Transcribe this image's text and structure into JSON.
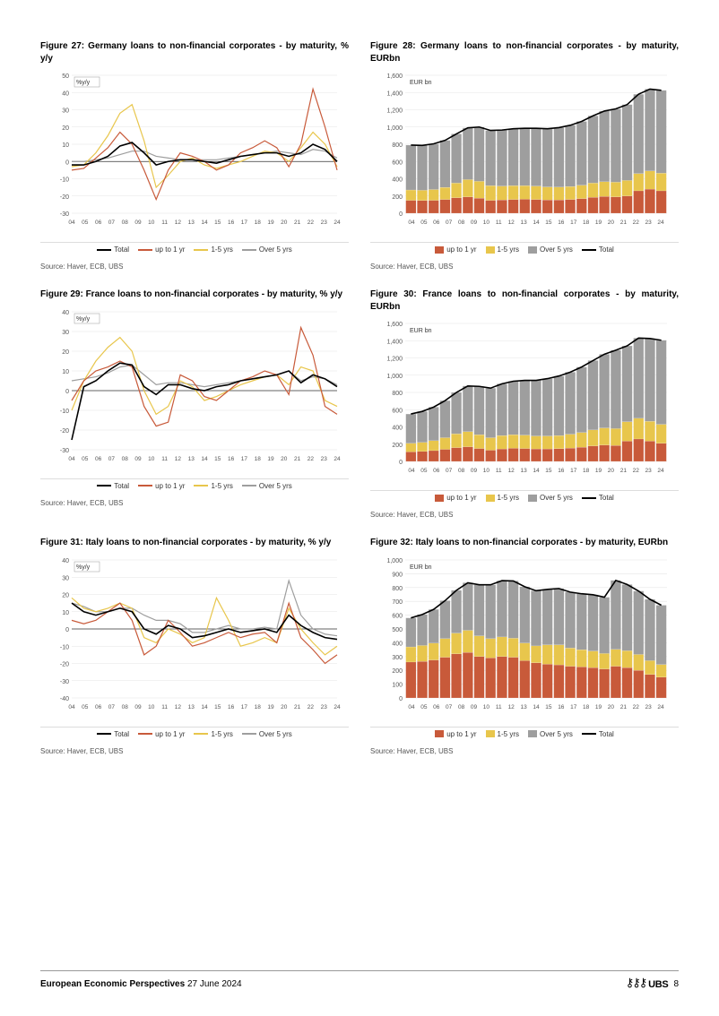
{
  "colors": {
    "total": "#000000",
    "upto1": "#c85a3a",
    "yrs15": "#e8c64c",
    "over5": "#9e9e9e",
    "grid": "#e5e5e5",
    "axis": "#888888",
    "bg": "#ffffff"
  },
  "x_labels": [
    "04",
    "05",
    "06",
    "07",
    "08",
    "09",
    "10",
    "11",
    "12",
    "13",
    "14",
    "15",
    "16",
    "17",
    "18",
    "19",
    "20",
    "21",
    "22",
    "23",
    "24"
  ],
  "figures": [
    {
      "id": "fig27",
      "title": "Figure 27: Germany loans to non-financial corporates - by maturity, % y/y",
      "type": "line",
      "ylabel": "%y/y",
      "ylim": [
        -30,
        50
      ],
      "ystep": 10,
      "legend_order": [
        "total",
        "upto1",
        "yrs15",
        "over5"
      ],
      "legend_labels": {
        "total": "Total",
        "upto1": "up to 1 yr",
        "yrs15": "1-5 yrs",
        "over5": "Over 5 yrs"
      },
      "series": {
        "total": [
          -2,
          -2,
          0,
          3,
          9,
          11,
          5,
          -2,
          0,
          1,
          1,
          0,
          -1,
          1,
          3,
          4,
          5,
          5,
          3,
          5,
          10,
          7,
          0
        ],
        "upto1": [
          -5,
          -4,
          2,
          8,
          17,
          10,
          -5,
          -22,
          -5,
          5,
          3,
          0,
          -5,
          -2,
          5,
          8,
          12,
          8,
          -3,
          10,
          42,
          20,
          -5
        ],
        "yrs15": [
          -3,
          -2,
          5,
          15,
          28,
          33,
          12,
          -15,
          -8,
          0,
          2,
          -2,
          -4,
          -2,
          0,
          3,
          6,
          5,
          0,
          8,
          17,
          10,
          -3
        ],
        "over5": [
          0,
          0,
          1,
          2,
          4,
          6,
          6,
          3,
          2,
          1,
          1,
          1,
          1,
          2,
          3,
          4,
          5,
          6,
          5,
          4,
          7,
          6,
          2
        ]
      }
    },
    {
      "id": "fig28",
      "title": "Figure 28: Germany loans to non-financial corporates - by maturity, EURbn",
      "type": "stacked",
      "ylabel": "EUR bn",
      "ylim": [
        0,
        1600
      ],
      "ystep": 200,
      "legend_order": [
        "upto1",
        "yrs15",
        "over5",
        "total"
      ],
      "legend_labels": {
        "upto1": "up to 1 yr",
        "yrs15": "1-5 yrs",
        "over5": "Over 5 yrs",
        "total": "Total"
      },
      "stacks": {
        "upto1": [
          150,
          148,
          150,
          160,
          180,
          190,
          175,
          150,
          155,
          160,
          162,
          160,
          155,
          155,
          160,
          170,
          185,
          195,
          190,
          200,
          260,
          280,
          260
        ],
        "yrs15": [
          120,
          118,
          125,
          140,
          170,
          200,
          195,
          170,
          160,
          160,
          158,
          155,
          150,
          148,
          150,
          155,
          165,
          170,
          170,
          180,
          200,
          210,
          205
        ],
        "over5": [
          520,
          520,
          530,
          545,
          570,
          600,
          630,
          640,
          650,
          660,
          665,
          670,
          675,
          690,
          710,
          740,
          780,
          820,
          850,
          880,
          920,
          950,
          960
        ]
      }
    },
    {
      "id": "fig29",
      "title": "Figure 29: France loans to non-financial corporates - by maturity, % y/y",
      "type": "line",
      "ylabel": "%y/y",
      "ylim": [
        -30,
        40
      ],
      "ystep": 10,
      "legend_order": [
        "total",
        "upto1",
        "yrs15",
        "over5"
      ],
      "legend_labels": {
        "total": "Total",
        "upto1": "up to 1 yr",
        "yrs15": "1-5 yrs",
        "over5": "Over 5 yrs"
      },
      "series": {
        "total": [
          -25,
          2,
          5,
          10,
          14,
          13,
          2,
          -2,
          3,
          3,
          1,
          0,
          2,
          3,
          5,
          6,
          7,
          8,
          10,
          4,
          8,
          6,
          2
        ],
        "upto1": [
          -5,
          5,
          10,
          12,
          15,
          12,
          -8,
          -18,
          -16,
          8,
          5,
          -3,
          -5,
          0,
          5,
          7,
          10,
          8,
          -2,
          32,
          18,
          -8,
          -12
        ],
        "yrs15": [
          -10,
          5,
          15,
          22,
          27,
          20,
          0,
          -12,
          -8,
          5,
          2,
          -5,
          -3,
          0,
          3,
          5,
          7,
          8,
          3,
          12,
          10,
          -5,
          -8
        ],
        "over5": [
          5,
          6,
          7,
          9,
          12,
          13,
          8,
          3,
          4,
          4,
          3,
          2,
          3,
          4,
          5,
          6,
          7,
          8,
          10,
          5,
          7,
          6,
          3
        ]
      }
    },
    {
      "id": "fig30",
      "title": "Figure 30: France loans to non-financial corporates - by maturity, EURbn",
      "type": "stacked",
      "ylabel": "EUR bn",
      "ylim": [
        0,
        1600
      ],
      "ystep": 200,
      "legend_order": [
        "upto1",
        "yrs15",
        "over5",
        "total"
      ],
      "legend_labels": {
        "upto1": "up to 1 yr",
        "yrs15": "1-5 yrs",
        "over5": "Over 5 yrs",
        "total": "Total"
      },
      "stacks": {
        "upto1": [
          110,
          115,
          125,
          140,
          160,
          170,
          150,
          130,
          145,
          152,
          150,
          145,
          145,
          148,
          155,
          165,
          180,
          190,
          185,
          235,
          260,
          235,
          210
        ],
        "yrs15": [
          100,
          105,
          115,
          135,
          160,
          175,
          160,
          145,
          155,
          158,
          155,
          150,
          150,
          152,
          160,
          170,
          185,
          198,
          195,
          225,
          240,
          230,
          220
        ],
        "over5": [
          340,
          360,
          390,
          430,
          480,
          530,
          560,
          575,
          600,
          620,
          635,
          645,
          665,
          690,
          720,
          760,
          805,
          855,
          910,
          880,
          930,
          960,
          975
        ]
      }
    },
    {
      "id": "fig31",
      "title": "Figure 31: Italy loans to non-financial corporates - by maturity, % y/y",
      "type": "line",
      "ylabel": "%y/y",
      "ylim": [
        -40,
        40
      ],
      "ystep": 10,
      "legend_order": [
        "total",
        "upto1",
        "yrs15",
        "over5"
      ],
      "legend_labels": {
        "total": "Total",
        "upto1": "up to 1 yr",
        "yrs15": "1-5 yrs",
        "over5": "Over 5 yrs"
      },
      "series": {
        "total": [
          15,
          10,
          8,
          10,
          12,
          10,
          0,
          -3,
          2,
          0,
          -5,
          -4,
          -2,
          0,
          -2,
          -1,
          0,
          -2,
          8,
          2,
          -2,
          -5,
          -6
        ],
        "upto1": [
          5,
          3,
          5,
          10,
          15,
          5,
          -15,
          -10,
          5,
          -2,
          -10,
          -8,
          -5,
          -2,
          -5,
          -3,
          -2,
          -8,
          15,
          -5,
          -12,
          -20,
          -15
        ],
        "yrs15": [
          18,
          12,
          10,
          12,
          15,
          12,
          -5,
          -8,
          0,
          -3,
          -8,
          -5,
          18,
          5,
          -10,
          -8,
          -5,
          -8,
          12,
          0,
          -8,
          -15,
          -10
        ],
        "over5": [
          15,
          13,
          10,
          10,
          12,
          12,
          8,
          5,
          5,
          3,
          -2,
          -2,
          0,
          2,
          0,
          0,
          1,
          0,
          28,
          8,
          0,
          -3,
          -4
        ]
      }
    },
    {
      "id": "fig32",
      "title": "Figure 32: Italy loans to non-financial corporates - by maturity, EURbn",
      "type": "stacked",
      "ylabel": "EUR bn",
      "ylim": [
        0,
        1000
      ],
      "ystep": 100,
      "legend_order": [
        "upto1",
        "yrs15",
        "over5",
        "total"
      ],
      "legend_labels": {
        "upto1": "up to 1 yr",
        "yrs15": "1-5 yrs",
        "over5": "Over 5 yrs",
        "total": "Total"
      },
      "stacks": {
        "upto1": [
          260,
          265,
          275,
          295,
          320,
          330,
          300,
          290,
          300,
          295,
          270,
          255,
          245,
          240,
          230,
          225,
          220,
          210,
          230,
          220,
          200,
          170,
          150
        ],
        "yrs15": [
          110,
          115,
          122,
          135,
          150,
          160,
          150,
          140,
          142,
          138,
          128,
          122,
          140,
          145,
          132,
          125,
          120,
          112,
          122,
          122,
          115,
          100,
          92
        ],
        "over5": [
          210,
          225,
          245,
          275,
          310,
          345,
          370,
          390,
          408,
          415,
          408,
          400,
          402,
          408,
          405,
          405,
          408,
          408,
          500,
          480,
          460,
          445,
          430
        ]
      }
    }
  ],
  "source_text": "Source: Haver, ECB, UBS",
  "footer": {
    "title": "European Economic Perspectives",
    "date": "27 June 2024",
    "brand": "UBS",
    "page": "8"
  }
}
